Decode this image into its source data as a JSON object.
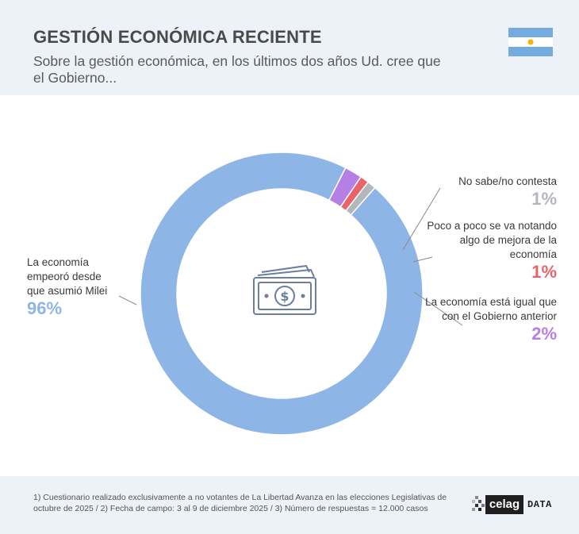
{
  "header": {
    "title": "GESTIÓN ECONÓMICA RECIENTE",
    "subtitle": "Sobre la gestión económica, en los últimos dos años Ud. cree que el Gobierno..."
  },
  "colors": {
    "header_bg": "#edf1f8",
    "flag_blue": "#74acdf",
    "flag_white": "#ffffff",
    "flag_sun": "#f6b40e"
  },
  "icons": {
    "flag": "argentina-flag-icon",
    "center": "money-bill-icon"
  },
  "chart_data": {
    "type": "donut",
    "title": "GESTIÓN ECONÓMICA RECIENTE",
    "start_angle_deg": 63,
    "direction": "counterclockwise",
    "slices": [
      {
        "label": "La economía empeoró desde que asumió Milei",
        "value": 96,
        "value_label": "96%",
        "color": "#8db5e6"
      },
      {
        "label": "No sabe/no contesta",
        "value": 1,
        "value_label": "1%",
        "color": "#b3b6bb"
      },
      {
        "label": "Poco a poco se va notando algo de mejora de la economía",
        "value": 1,
        "value_label": "1%",
        "color": "#e8646a"
      },
      {
        "label": "La economía está igual que con el Gobierno anterior",
        "value": 2,
        "value_label": "2%",
        "color": "#b57fe6"
      }
    ]
  },
  "labels": {
    "left": {
      "text": "La economía empeoró desde que asumió Milei",
      "value": "96%",
      "color": "#8db5e6"
    },
    "r1": {
      "text": "No sabe/no contesta",
      "value": "1%",
      "color": "#b3b6bb"
    },
    "r2": {
      "text": "Poco a poco se va notando algo de mejora de la economía",
      "value": "1%",
      "color": "#e8646a"
    },
    "r3": {
      "text": "La economía está igual que con el Gobierno anterior",
      "value": "2%",
      "color": "#b57fe6"
    }
  },
  "footer": {
    "note": "1) Cuestionario realizado exclusivamente a no votantes de La Libertad Avanza en las elecciones Legislativas de octubre de 2025 / 2) Fecha de campo: 3 al 9 de diciembre 2025 / 3) Número de respuestas = 12.000 casos",
    "logo_text": "celag",
    "logo_suffix": "DATA"
  }
}
